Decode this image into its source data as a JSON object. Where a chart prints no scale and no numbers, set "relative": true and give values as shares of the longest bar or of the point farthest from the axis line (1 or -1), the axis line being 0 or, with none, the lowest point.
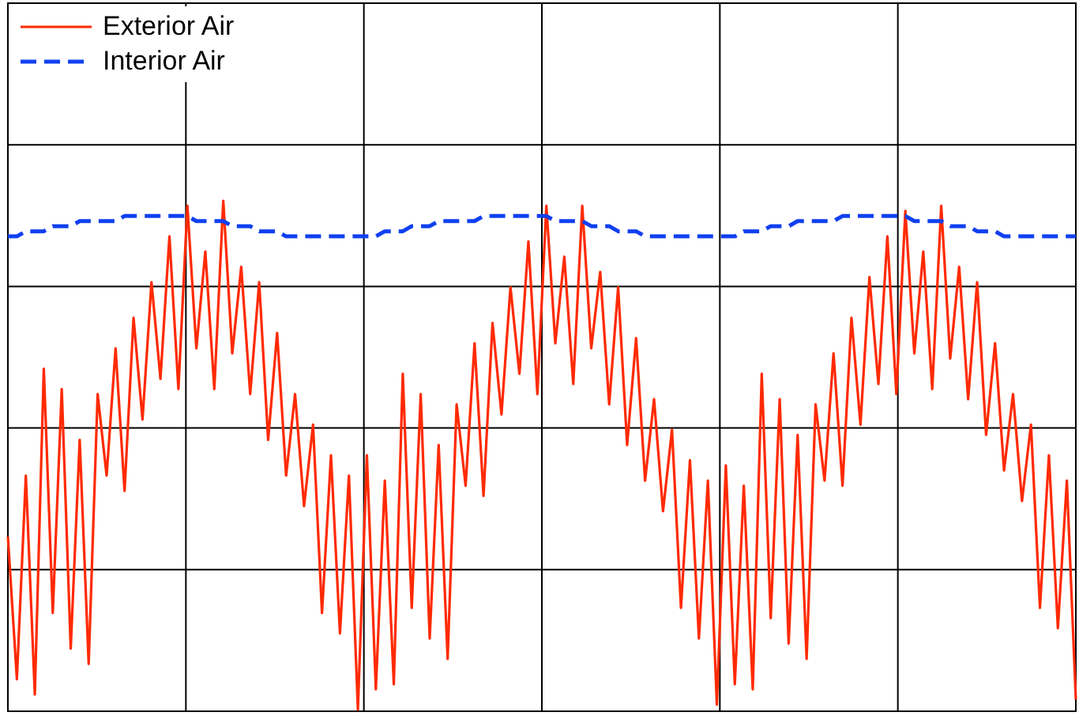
{
  "chart_data": {
    "type": "line",
    "relative": true,
    "grid": true,
    "legend": "top left",
    "categories": [
      null,
      null,
      null,
      null,
      null,
      null,
      null,
      null,
      null,
      null,
      null,
      null,
      null,
      null,
      null,
      null,
      null,
      null,
      null,
      null,
      null,
      null,
      null,
      null,
      null,
      null,
      null,
      null,
      null,
      null,
      null,
      null,
      null,
      null,
      null,
      null,
      null,
      null,
      null,
      null,
      null,
      null,
      null,
      null,
      null,
      null,
      null,
      null,
      null,
      null,
      null,
      null,
      null,
      null,
      null,
      null,
      null,
      null,
      null,
      null,
      null,
      null,
      null,
      null,
      null,
      null,
      null,
      null,
      null,
      null,
      null,
      null,
      null,
      null,
      null,
      null,
      null,
      null,
      null,
      null,
      null,
      null,
      null,
      null,
      null,
      null,
      null,
      null,
      null,
      null,
      null,
      null,
      null,
      null,
      null,
      null,
      null,
      null,
      null,
      null,
      null,
      null,
      null,
      null,
      null,
      null,
      null,
      null,
      null,
      null,
      null,
      null,
      null,
      null,
      null,
      null,
      null,
      null,
      null,
      null
    ],
    "series": [
      {
        "name": "Exterior Air",
        "color": "#ff2a00",
        "line_style": "solid",
        "values": [
          0.34,
          0.06,
          0.46,
          0.03,
          0.67,
          0.19,
          0.63,
          0.12,
          0.53,
          0.09,
          0.62,
          0.46,
          0.71,
          0.43,
          0.77,
          0.57,
          0.84,
          0.65,
          0.93,
          0.63,
          0.99,
          0.71,
          0.9,
          0.63,
          1.0,
          0.7,
          0.87,
          0.62,
          0.84,
          0.53,
          0.74,
          0.46,
          0.62,
          0.4,
          0.56,
          0.19,
          0.5,
          0.15,
          0.46,
          0,
          0.5,
          0.04,
          0.45,
          0.05,
          0.66,
          0.2,
          0.62,
          0.14,
          0.52,
          0.1,
          0.6,
          0.44,
          0.72,
          0.42,
          0.76,
          0.58,
          0.83,
          0.66,
          0.92,
          0.62,
          0.99,
          0.72,
          0.89,
          0.64,
          0.99,
          0.71,
          0.86,
          0.6,
          0.83,
          0.52,
          0.73,
          0.45,
          0.61,
          0.39,
          0.55,
          0.2,
          0.49,
          0.14,
          0.45,
          0.01,
          0.48,
          0.05,
          0.44,
          0.04,
          0.66,
          0.18,
          0.61,
          0.13,
          0.54,
          0.1,
          0.6,
          0.45,
          0.7,
          0.44,
          0.77,
          0.56,
          0.85,
          0.64,
          0.93,
          0.62,
          0.98,
          0.7,
          0.9,
          0.63,
          0.99,
          0.69,
          0.87,
          0.61,
          0.84,
          0.54,
          0.72,
          0.47,
          0.62,
          0.41,
          0.56,
          0.2,
          0.5,
          0.16,
          0.45,
          0.02
        ]
      },
      {
        "name": "Interior Air",
        "color": "#1040f0",
        "line_style": "dashed",
        "values": [
          0.93,
          0.93,
          0.94,
          0.94,
          0.94,
          0.95,
          0.95,
          0.95,
          0.96,
          0.96,
          0.96,
          0.96,
          0.96,
          0.97,
          0.97,
          0.97,
          0.97,
          0.97,
          0.97,
          0.97,
          0.97,
          0.96,
          0.96,
          0.96,
          0.96,
          0.95,
          0.95,
          0.95,
          0.94,
          0.94,
          0.94,
          0.93,
          0.93,
          0.93,
          0.93,
          0.93,
          0.93,
          0.93,
          0.93,
          0.93,
          0.93,
          0.93,
          0.94,
          0.94,
          0.94,
          0.95,
          0.95,
          0.95,
          0.96,
          0.96,
          0.96,
          0.96,
          0.96,
          0.97,
          0.97,
          0.97,
          0.97,
          0.97,
          0.97,
          0.97,
          0.97,
          0.96,
          0.96,
          0.96,
          0.96,
          0.95,
          0.95,
          0.95,
          0.94,
          0.94,
          0.94,
          0.93,
          0.93,
          0.93,
          0.93,
          0.93,
          0.93,
          0.93,
          0.93,
          0.93,
          0.93,
          0.93,
          0.94,
          0.94,
          0.94,
          0.95,
          0.95,
          0.95,
          0.96,
          0.96,
          0.96,
          0.96,
          0.96,
          0.97,
          0.97,
          0.97,
          0.97,
          0.97,
          0.97,
          0.97,
          0.97,
          0.96,
          0.96,
          0.96,
          0.96,
          0.95,
          0.95,
          0.95,
          0.94,
          0.94,
          0.94,
          0.93,
          0.93,
          0.93,
          0.93,
          0.93,
          0.93,
          0.93,
          0.93,
          0.93
        ]
      }
    ]
  }
}
